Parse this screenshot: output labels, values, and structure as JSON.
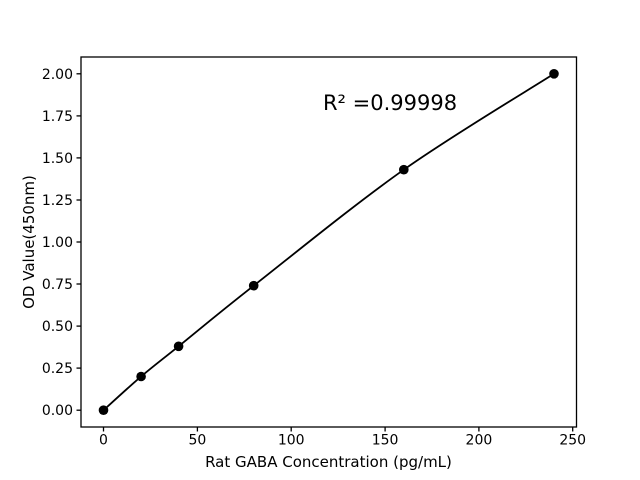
{
  "figure": {
    "background": "#ffffff",
    "foreground": "#000000"
  },
  "chart_data": {
    "type": "scatter",
    "title": "",
    "xlabel": "Rat GABA Concentration (pg/mL)",
    "ylabel": "OD Value(450nm)",
    "series": [
      {
        "name": "standard-curve",
        "x": [
          0,
          20,
          40,
          80,
          160,
          240
        ],
        "y": [
          0.0,
          0.2,
          0.38,
          0.74,
          1.43,
          2.0
        ],
        "marker": "filled-circle",
        "line": "smooth-fit",
        "color": "#000000"
      }
    ],
    "annotation": {
      "text": "R² =0.99998",
      "x": 153,
      "y": 1.79
    },
    "xticks": [
      0,
      50,
      100,
      150,
      200,
      250
    ],
    "yticks": [
      0.0,
      0.25,
      0.5,
      0.75,
      1.0,
      1.25,
      1.5,
      1.75,
      2.0
    ],
    "ytick_decimals": 2,
    "xlim": [
      -12,
      252
    ],
    "ylim": [
      -0.1,
      2.1
    ],
    "grid": false,
    "legend": null,
    "axis_color": "#000000",
    "background": "#ffffff"
  }
}
